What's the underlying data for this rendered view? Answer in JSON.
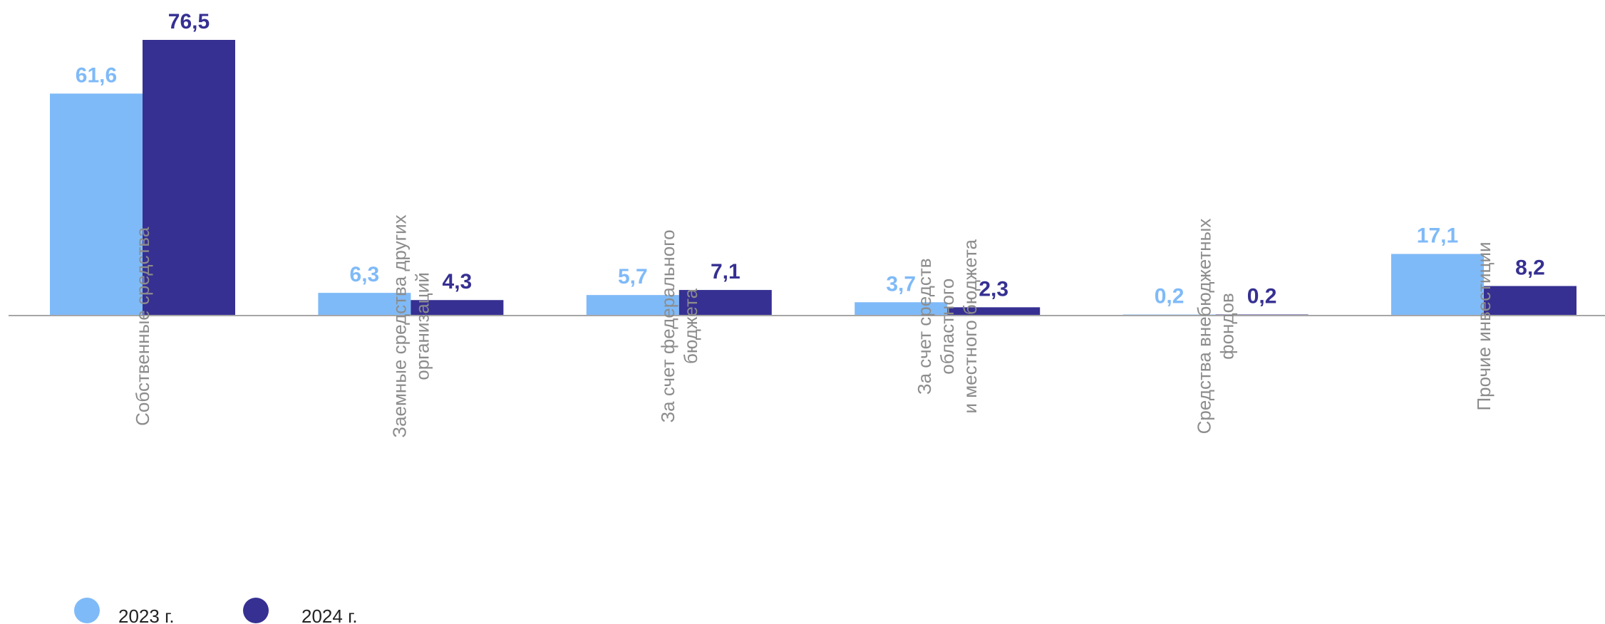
{
  "chart_data": {
    "type": "bar",
    "categories": [
      [
        "Собственные средства"
      ],
      [
        "Заемные средства других",
        "организаций"
      ],
      [
        "За счет федерального",
        "бюджета"
      ],
      [
        "За счет средств",
        "областного",
        "и местного бюджета"
      ],
      [
        "Средства внебюджетных",
        "фондов"
      ],
      [
        "Прочие инвестиции"
      ]
    ],
    "series": [
      {
        "name": "2023 г.",
        "values": [
          61.6,
          6.3,
          5.7,
          3.7,
          0.2,
          17.1
        ],
        "labels": [
          "61,6",
          "6,3",
          "5,7",
          "3,7",
          "0,2",
          "17,1"
        ],
        "color": "#7fbaf8"
      },
      {
        "name": "2024 г.",
        "values": [
          76.5,
          4.3,
          7.1,
          2.3,
          0.2,
          8.2
        ],
        "labels": [
          "76,5",
          "4,3",
          "7,1",
          "2,3",
          "0,2",
          "8,2"
        ],
        "color": "#363092"
      }
    ],
    "ylim": [
      0,
      80
    ],
    "legend": "bottom-left",
    "grid": false
  }
}
